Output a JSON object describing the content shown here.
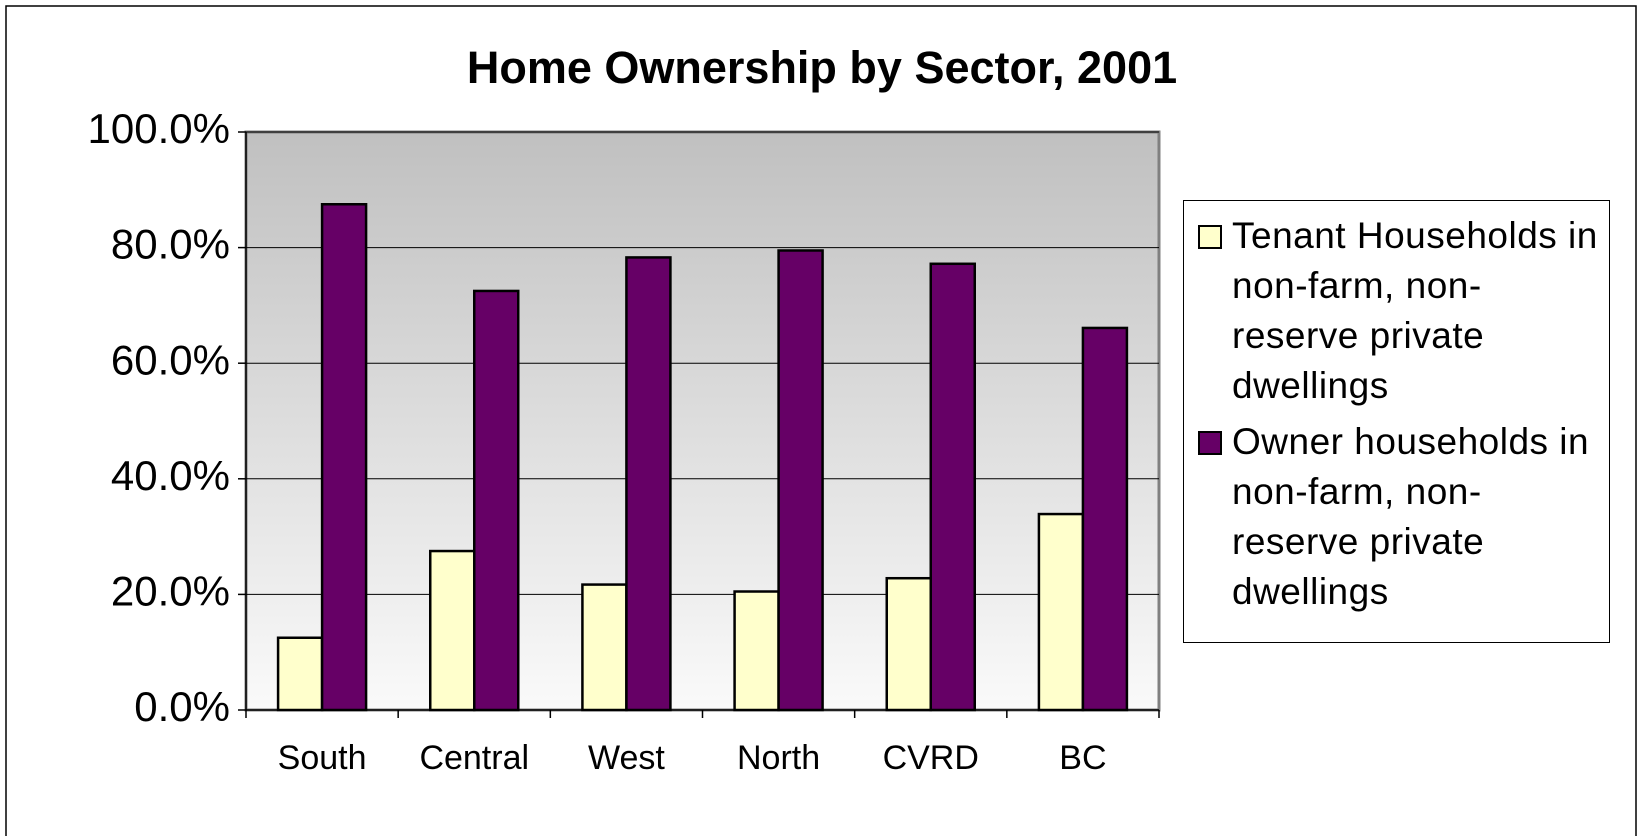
{
  "chart_data": {
    "type": "bar",
    "title": "Home Ownership by Sector, 2001",
    "categories": [
      "South",
      "Central",
      "West",
      "North",
      "CVRD",
      "BC"
    ],
    "series": [
      {
        "name": "Tenant Households in non-farm, non-reserve private dwellings",
        "color": "#ffffcc",
        "values": [
          12.5,
          27.5,
          21.7,
          20.5,
          22.8,
          33.9
        ]
      },
      {
        "name": "Owner households in non-farm, non-reserve private dwellings",
        "color": "#660066",
        "values": [
          87.5,
          72.5,
          78.3,
          79.5,
          77.2,
          66.1
        ]
      }
    ],
    "ylim": [
      0,
      100
    ],
    "yticks": [
      {
        "value": 0,
        "label": "0.0%"
      },
      {
        "value": 20,
        "label": "20.0%"
      },
      {
        "value": 40,
        "label": "40.0%"
      },
      {
        "value": 60,
        "label": "60.0%"
      },
      {
        "value": 80,
        "label": "80.0%"
      },
      {
        "value": 100,
        "label": "100.0%"
      }
    ],
    "grid": true,
    "legend": "right"
  }
}
